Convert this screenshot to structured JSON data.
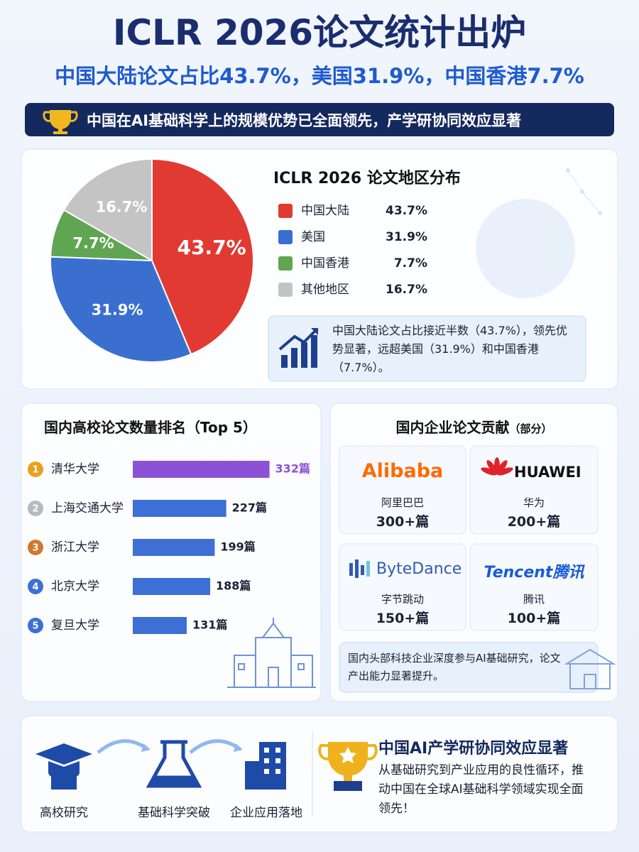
{
  "header": {
    "title": "ICLR 2026论文统计出炉",
    "subtitle": "中国大陆论文占比43.7%，美国31.9%，中国香港7.7%",
    "banner": "中国在AI基础科学上的规模优势已全面领先，产学研协同效应显著"
  },
  "chart_data": [
    {
      "type": "pie",
      "title": "ICLR 2026 论文地区分布",
      "categories": [
        "中国大陆",
        "美国",
        "中国香港",
        "其他地区"
      ],
      "values": [
        43.7,
        31.9,
        7.7,
        16.7
      ],
      "value_labels": [
        "43.7%",
        "31.9%",
        "7.7%",
        "16.7%"
      ],
      "colors": [
        "#e03a33",
        "#3a6fd0",
        "#5fa552",
        "#c4c4c4"
      ],
      "note": "中国大陆论文占比接近半数（43.7%），领先优势显著，远超美国（31.9%）和中国香港（7.7%）。"
    },
    {
      "type": "bar",
      "orientation": "horizontal",
      "title": "国内高校论文数量排名（Top 5）",
      "ranks": [
        1,
        2,
        3,
        4,
        5
      ],
      "categories": [
        "清华大学",
        "上海交通大学",
        "浙江大学",
        "北京大学",
        "复旦大学"
      ],
      "values": [
        332,
        227,
        199,
        188,
        131
      ],
      "value_labels": [
        "332篇",
        "227篇",
        "199篇",
        "188篇",
        "131篇"
      ],
      "colors": [
        "#8c52d6",
        "#3e6fd4",
        "#3e6fd4",
        "#3e6fd4",
        "#3e6fd4"
      ]
    }
  ],
  "companies": {
    "title": "国内企业论文贡献",
    "title_note": "（部分）",
    "items": [
      {
        "logo": "Alibaba",
        "name": "阿里巴巴",
        "count": "300+篇"
      },
      {
        "logo": "HUAWEI",
        "name": "华为",
        "count": "200+篇"
      },
      {
        "logo": "ByteDance",
        "name": "字节跳动",
        "count": "150+篇"
      },
      {
        "logo": "Tencent腾讯",
        "name": "腾讯",
        "count": "100+篇"
      }
    ],
    "note": "国内头部科技企业深度参与AI基础研究，论文产出能力显著提升。"
  },
  "footer": {
    "steps": [
      "高校研究",
      "基础科学突破",
      "企业应用落地"
    ],
    "title": "中国AI产学研协同效应显著",
    "text": "从基础研究到产业应用的良性循环，推动中国在全球AI基础科学领域实现全面领先！"
  }
}
